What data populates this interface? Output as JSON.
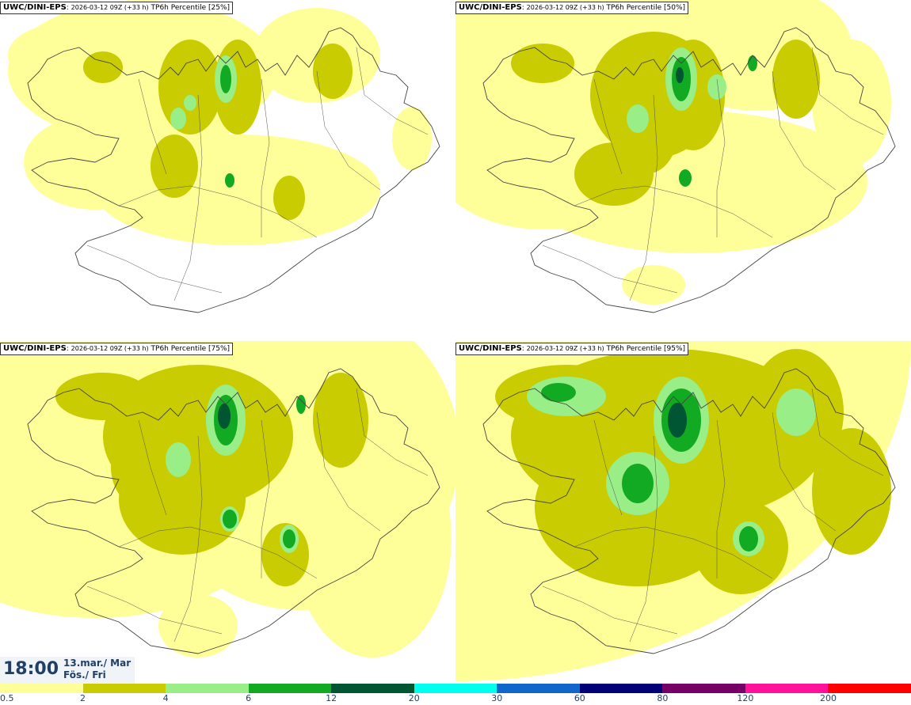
{
  "panels": [
    {
      "model": "UWC/DINI-EPS",
      "run": "2026-03-12 09Z (+33 h)",
      "label": "TP6h Percentile [25%]"
    },
    {
      "model": "UWC/DINI-EPS",
      "run": "2026-03-12 09Z (+33 h)",
      "label": "TP6h Percentile [50%]"
    },
    {
      "model": "UWC/DINI-EPS",
      "run": "2026-03-12 09Z (+33 h)",
      "label": "TP6h Percentile [75%]"
    },
    {
      "model": "UWC/DINI-EPS",
      "run": "2026-03-12 09Z (+33 h)",
      "label": "TP6h Percentile [95%]"
    }
  ],
  "valid_time": {
    "time": "18:00",
    "date": "13.mar./ Mar",
    "day": "Fös./ Fri"
  },
  "colorbar": {
    "ticks": [
      "0.5",
      "2",
      "4",
      "6",
      "12",
      "20",
      "30",
      "60",
      "80",
      "120",
      "200"
    ],
    "colors": [
      "#ffff99",
      "#c8cc00",
      "#99ee88",
      "#11aa22",
      "#005533",
      "#00ffee",
      "#1166cc",
      "#000077",
      "#770066",
      "#ff1199",
      "#ff0000"
    ]
  },
  "palette": {
    "light_yellow": "#ffff99",
    "olive": "#c8cc00",
    "light_green": "#99ee88",
    "green": "#11aa22",
    "dark_green": "#005533",
    "outline": "#444444"
  }
}
